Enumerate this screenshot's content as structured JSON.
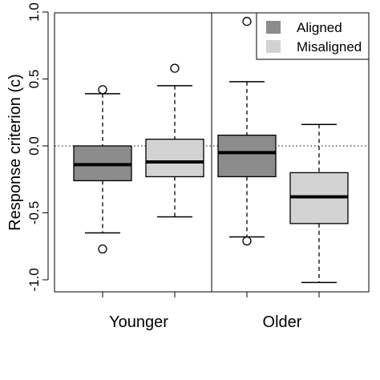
{
  "chart_data": {
    "type": "boxplot",
    "ylabel": "Response criterion (c)",
    "ylim": [
      -1.0,
      1.0
    ],
    "yticks": [
      "1.0",
      "0.5",
      "0.0",
      "-0.5",
      "-1.0"
    ],
    "ytick_values": [
      1.0,
      0.5,
      0.0,
      -0.5,
      -1.0
    ],
    "groups": [
      "Younger",
      "Older"
    ],
    "reference_line": 0.0,
    "legend": {
      "placement": "top-right"
    },
    "colors": {
      "Aligned": "#8c8c8c",
      "Misaligned": "#d3d3d3"
    },
    "series": [
      {
        "name": "Aligned",
        "boxes": [
          {
            "group": "Younger",
            "min": -0.65,
            "q1": -0.26,
            "median": -0.14,
            "q3": 0.0,
            "max": 0.39,
            "outliers": [
              0.42,
              -0.77
            ]
          },
          {
            "group": "Older",
            "min": -0.68,
            "q1": -0.23,
            "median": -0.05,
            "q3": 0.08,
            "max": 0.48,
            "outliers": [
              0.93,
              -0.71
            ]
          }
        ]
      },
      {
        "name": "Misaligned",
        "boxes": [
          {
            "group": "Younger",
            "min": -0.53,
            "q1": -0.23,
            "median": -0.12,
            "q3": 0.05,
            "max": 0.45,
            "outliers": [
              0.58
            ]
          },
          {
            "group": "Older",
            "min": -1.02,
            "q1": -0.58,
            "median": -0.38,
            "q3": -0.2,
            "max": 0.16,
            "outliers": []
          }
        ]
      }
    ]
  }
}
